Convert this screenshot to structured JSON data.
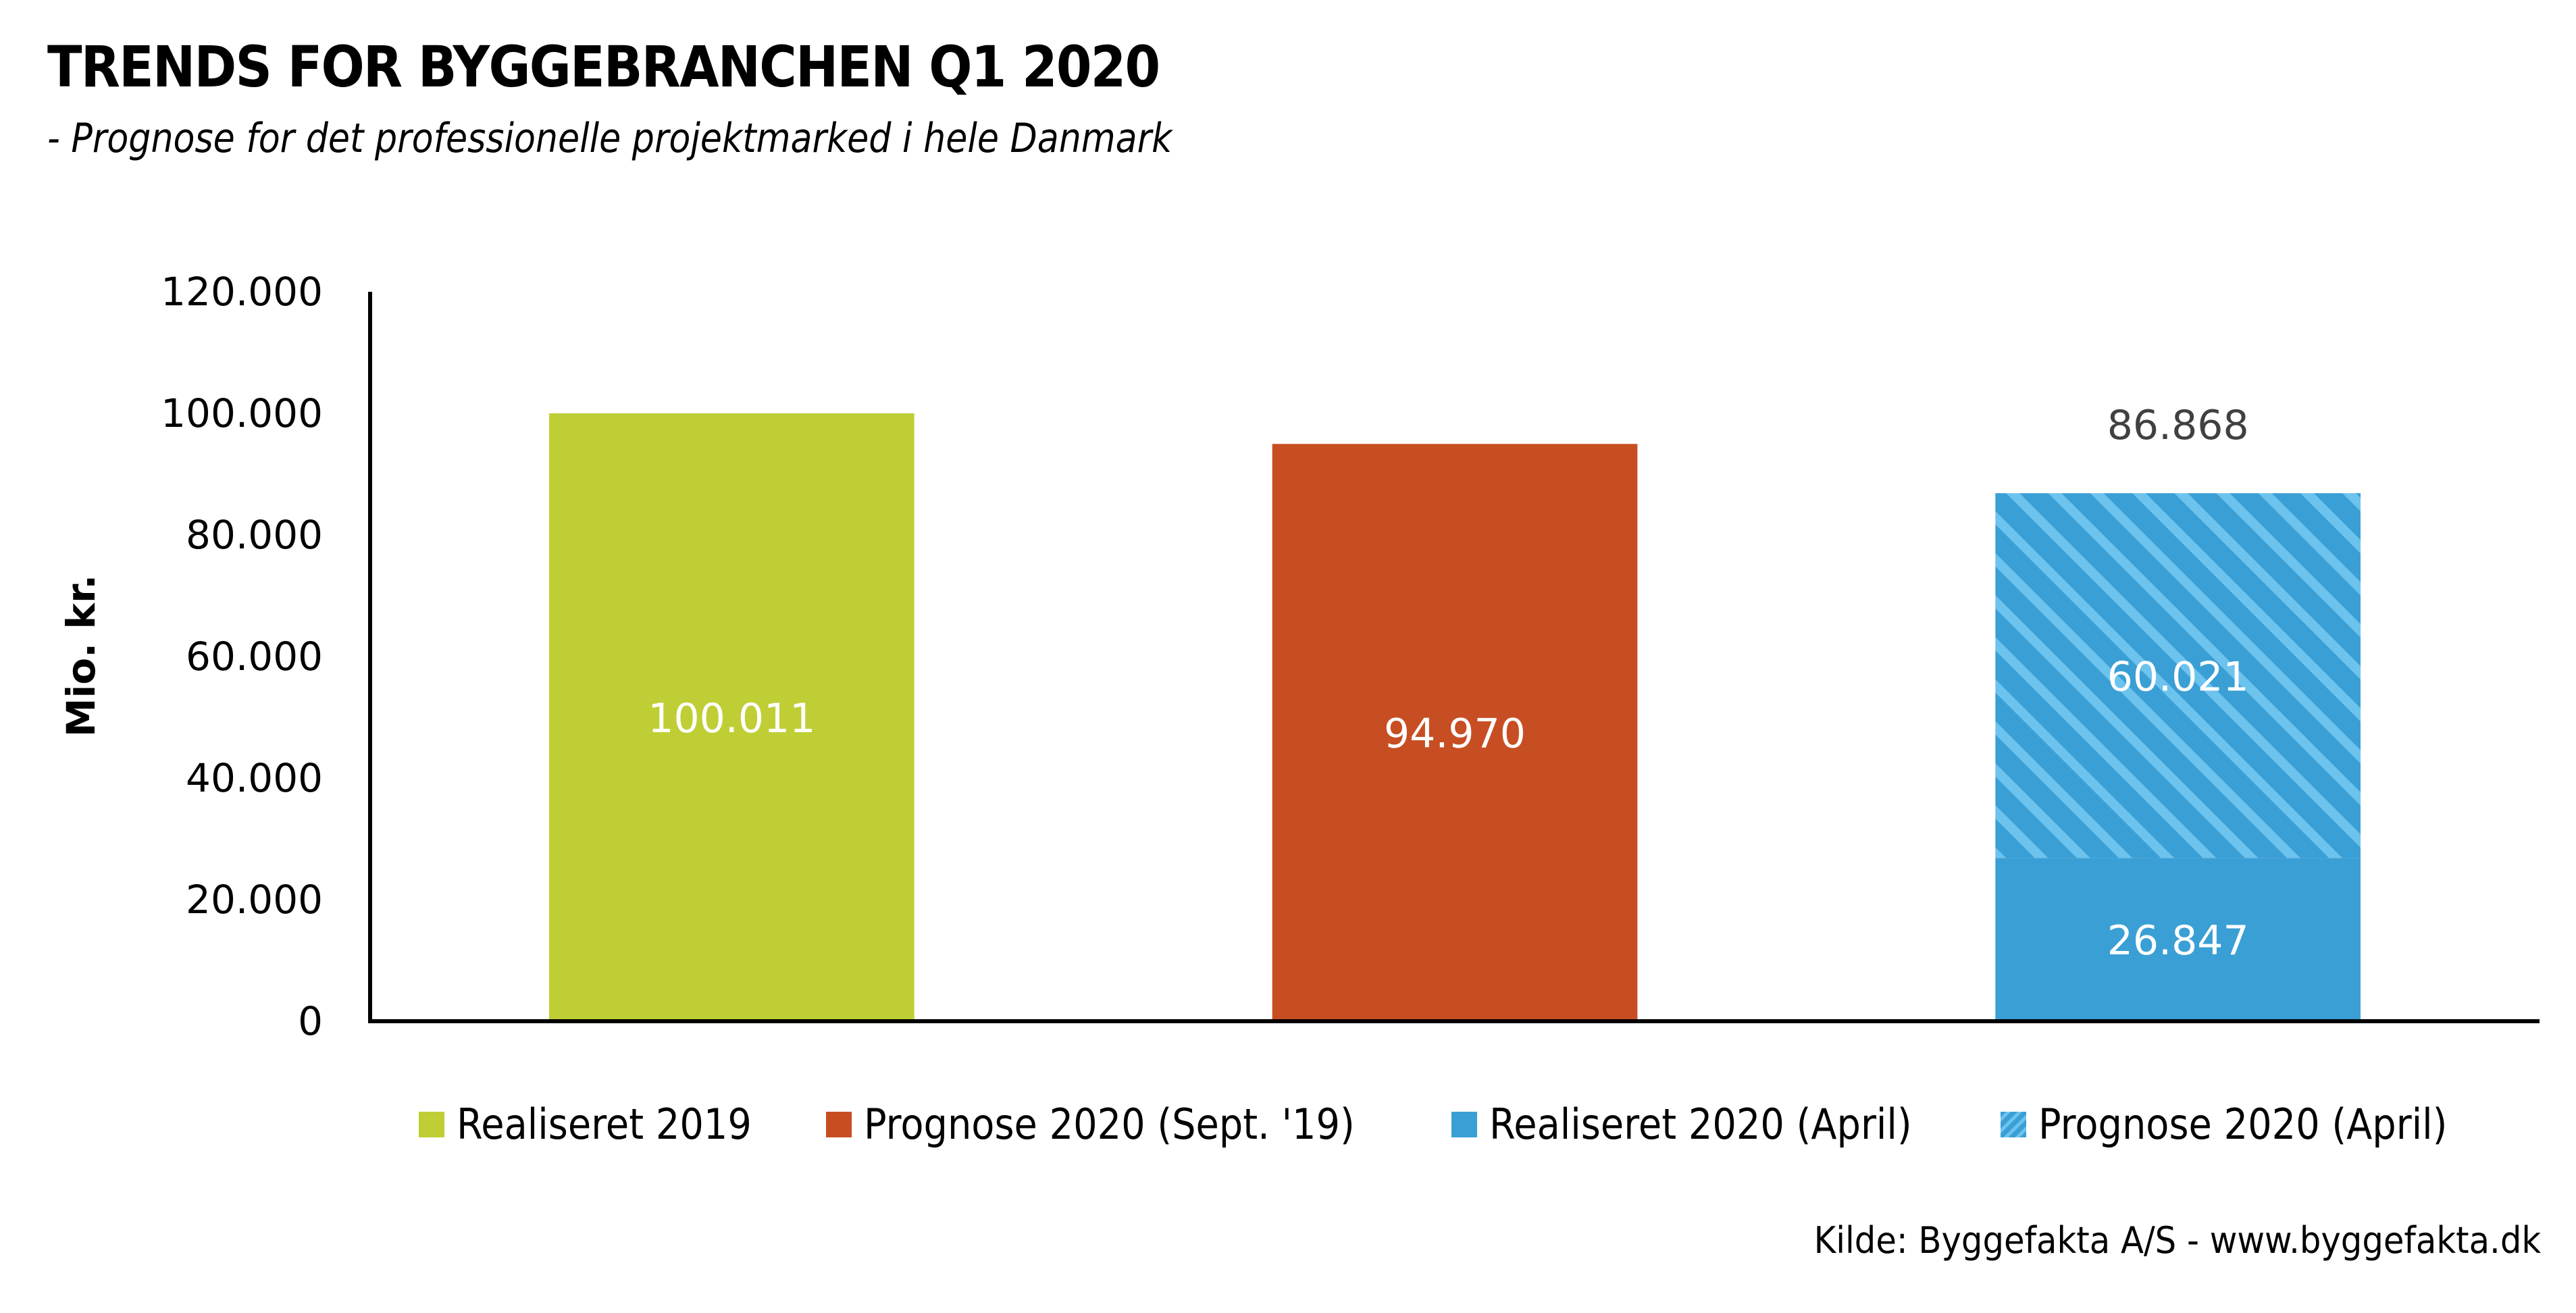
{
  "header": {
    "title": "TRENDS FOR BYGGEBRANCHEN Q1 2020",
    "subtitle": "- Prognose for det professionelle projektmarked i hele Danmark"
  },
  "source": "Kilde: Byggefakta A/S - www.byggefakta.dk",
  "colors": {
    "realiseret_2019": "#BFCE35",
    "prognose_2020_sept": "#C74E23",
    "realiseret_2020_april": "#3A9FD4",
    "prognose_2020_april_base": "#3A9FD4",
    "prognose_2020_april_stripe": "#6CC3EE"
  },
  "chart_data": {
    "type": "bar",
    "title": "TRENDS FOR BYGGEBRANCHEN Q1 2020",
    "subtitle": "- Prognose for det professionelle projektmarked i hele Danmark",
    "xlabel": "",
    "ylabel": "Mio. kr.",
    "ylim": [
      0,
      120000
    ],
    "yticks": [
      0,
      20000,
      40000,
      60000,
      80000,
      100000,
      120000
    ],
    "ytick_labels": [
      "0",
      "20.000",
      "40.000",
      "60.000",
      "80.000",
      "100.000",
      "120.000"
    ],
    "grid": false,
    "legend_position": "bottom",
    "bars": [
      {
        "name": "Realiseret 2019",
        "segments": [
          {
            "series": "Realiseret 2019",
            "value": 100011,
            "label": "100.011",
            "pattern": "solid"
          }
        ]
      },
      {
        "name": "Prognose 2020 (Sept. '19)",
        "segments": [
          {
            "series": "Prognose 2020 (Sept. '19)",
            "value": 94970,
            "label": "94.970",
            "pattern": "solid"
          }
        ]
      },
      {
        "name": "2020 (April)",
        "total": 86868,
        "total_label": "86.868",
        "segments": [
          {
            "series": "Realiseret 2020 (April)",
            "value": 26847,
            "label": "26.847",
            "pattern": "solid"
          },
          {
            "series": "Prognose 2020 (April)",
            "value": 60021,
            "label": "60.021",
            "pattern": "striped"
          }
        ]
      }
    ],
    "legend": [
      {
        "label": "Realiseret 2019",
        "color_key": "realiseret_2019",
        "pattern": "solid"
      },
      {
        "label": "Prognose 2020 (Sept. '19)",
        "color_key": "prognose_2020_sept",
        "pattern": "solid"
      },
      {
        "label": "Realiseret 2020 (April)",
        "color_key": "realiseret_2020_april",
        "pattern": "solid"
      },
      {
        "label": "Prognose 2020 (April)",
        "color_key": "prognose_2020_april_base",
        "pattern": "striped"
      }
    ]
  }
}
